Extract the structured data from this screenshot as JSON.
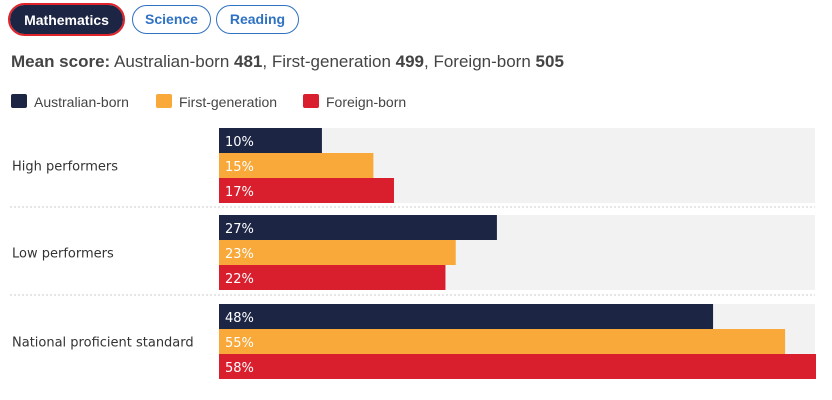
{
  "tabs": [
    {
      "label": "Mathematics",
      "active": true
    },
    {
      "label": "Science",
      "active": false
    },
    {
      "label": "Reading",
      "active": false
    }
  ],
  "mean_score": {
    "label": "Mean score:",
    "entries": [
      {
        "group": "Australian-born",
        "value": "481"
      },
      {
        "group": "First-generation",
        "value": "499"
      },
      {
        "group": "Foreign-born",
        "value": "505"
      }
    ]
  },
  "colors": {
    "australian": "#1d2545",
    "first_gen": "#f9a93a",
    "foreign": "#d91f2e",
    "track": "#f2f2f2",
    "divider": "#cccccc"
  },
  "chart_data": {
    "type": "bar",
    "orientation": "horizontal",
    "categories": [
      "High performers",
      "Low performers",
      "National proficient standard"
    ],
    "series": [
      {
        "name": "Australian-born",
        "values": [
          10,
          27,
          48
        ],
        "labels": [
          "10%",
          "27%",
          "48%"
        ]
      },
      {
        "name": "First-generation",
        "values": [
          15,
          23,
          55
        ],
        "labels": [
          "15%",
          "23%",
          "55%"
        ]
      },
      {
        "name": "Foreign-born",
        "values": [
          17,
          22,
          58
        ],
        "labels": [
          "17%",
          "22%",
          "58%"
        ]
      }
    ],
    "xlim": [
      0,
      58
    ],
    "legend_position": "top-left",
    "title": "",
    "xlabel": "",
    "ylabel": ""
  }
}
